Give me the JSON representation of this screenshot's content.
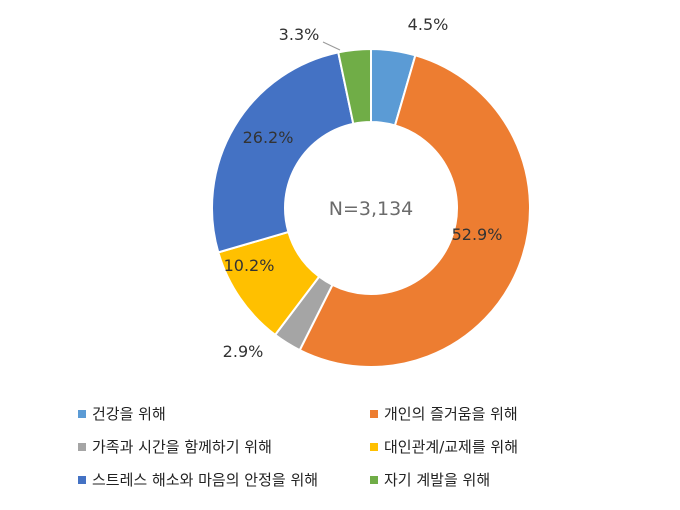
{
  "chart_data": {
    "type": "pie",
    "center_label": "N=3,134",
    "legend_placement": "bottom",
    "slices": [
      {
        "name": "건강을 위해",
        "value": 4.5,
        "label": "4.5%",
        "color": "#5B9BD5"
      },
      {
        "name": "개인의 즐거움을 위해",
        "value": 52.9,
        "label": "52.9%",
        "color": "#ED7D31"
      },
      {
        "name": "가족과 시간을 함께하기 위해",
        "value": 2.9,
        "label": "2.9%",
        "color": "#A5A5A5"
      },
      {
        "name": "대인관계/교제를 위해",
        "value": 10.2,
        "label": "10.2%",
        "color": "#FFC000"
      },
      {
        "name": "스트레스 해소와 마음의 안정을 위해",
        "value": 26.2,
        "label": "26.2%",
        "color": "#4472C4"
      },
      {
        "name": "자기 계발을 위해",
        "value": 3.3,
        "label": "3.3%",
        "color": "#70AD47"
      }
    ]
  }
}
